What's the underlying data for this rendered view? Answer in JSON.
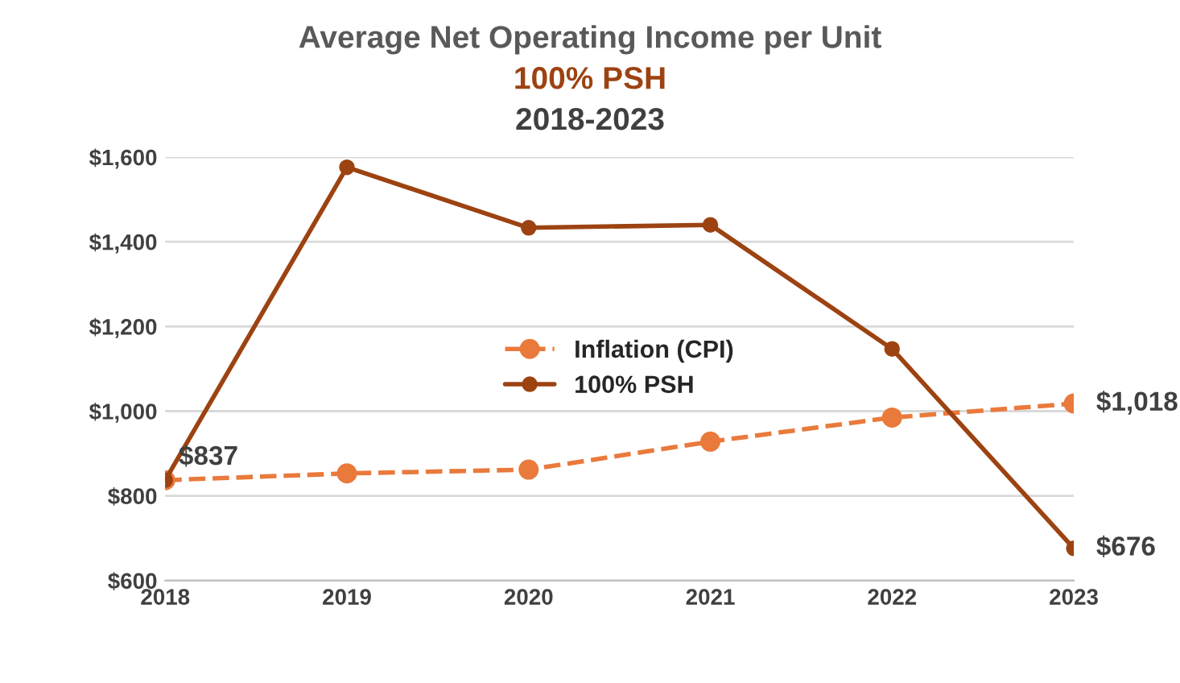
{
  "chart_data": {
    "type": "line",
    "title": "Average Net Operating Income per Unit",
    "subtitle": "100% PSH",
    "annotations": [
      "2018-2023"
    ],
    "categories": [
      "2018",
      "2019",
      "2020",
      "2021",
      "2022",
      "2023"
    ],
    "series": [
      {
        "name": "Inflation (CPI)",
        "color": "#e97a3c",
        "line_style": "dashed",
        "values": [
          837,
          853,
          862,
          928,
          985,
          1018
        ],
        "value_labels": [
          "$837",
          null,
          null,
          null,
          null,
          "$1,018"
        ]
      },
      {
        "name": "100% PSH",
        "color": "#9c4311",
        "line_style": "solid",
        "values": [
          837,
          1576,
          1433,
          1440,
          1147,
          676
        ],
        "value_labels": [
          null,
          null,
          null,
          null,
          null,
          "$676"
        ]
      }
    ],
    "ylim": [
      600,
      1600
    ],
    "yticks": [
      {
        "value": 600,
        "label": "$600"
      },
      {
        "value": 800,
        "label": "$800"
      },
      {
        "value": 1000,
        "label": "$1,000"
      },
      {
        "value": 1200,
        "label": "$1,200"
      },
      {
        "value": 1400,
        "label": "$1,400"
      },
      {
        "value": 1600,
        "label": "$1,600"
      }
    ],
    "grid": "y",
    "legend": "center",
    "marker": "circle"
  }
}
